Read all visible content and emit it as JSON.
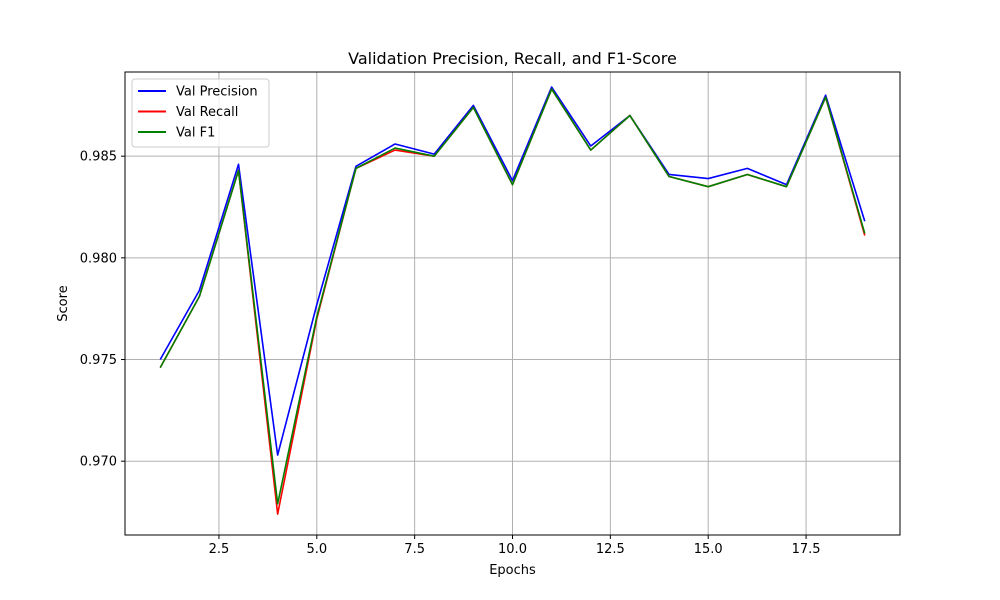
{
  "chart_data": {
    "type": "line",
    "title": "Validation Precision, Recall, and F1-Score",
    "xlabel": "Epochs",
    "ylabel": "Score",
    "xlim": [
      0.1,
      19.9
    ],
    "ylim": [
      0.96637,
      0.98914
    ],
    "xticks": [
      2.5,
      5.0,
      7.5,
      10.0,
      12.5,
      15.0,
      17.5
    ],
    "xtick_labels": [
      "2.5",
      "5.0",
      "7.5",
      "10.0",
      "12.5",
      "15.0",
      "17.5"
    ],
    "yticks": [
      0.97,
      0.975,
      0.98,
      0.985
    ],
    "ytick_labels": [
      "0.970",
      "0.975",
      "0.980",
      "0.985"
    ],
    "grid": true,
    "legend_position": "top-left",
    "x": [
      1,
      2,
      3,
      4,
      5,
      6,
      7,
      8,
      9,
      10,
      11,
      12,
      13,
      14,
      15,
      16,
      17,
      18,
      19
    ],
    "series": [
      {
        "name": "Val Precision",
        "color": "#0000ff",
        "values": [
          0.975,
          0.9784,
          0.9846,
          0.9703,
          0.9777,
          0.9845,
          0.9856,
          0.9851,
          0.9875,
          0.9838,
          0.9884,
          0.9855,
          0.987,
          0.9841,
          0.9839,
          0.9844,
          0.9836,
          0.988,
          0.9818
        ]
      },
      {
        "name": "Val Recall",
        "color": "#ff0000",
        "values": [
          0.9746,
          0.9781,
          0.9843,
          0.9674,
          0.977,
          0.9844,
          0.9853,
          0.985,
          0.9874,
          0.9836,
          0.9883,
          0.9853,
          0.987,
          0.984,
          0.9835,
          0.9841,
          0.9835,
          0.9879,
          0.9811
        ]
      },
      {
        "name": "Val F1",
        "color": "#008000",
        "values": [
          0.9746,
          0.9781,
          0.9843,
          0.9679,
          0.9771,
          0.9844,
          0.9854,
          0.985,
          0.9874,
          0.9836,
          0.9883,
          0.9853,
          0.987,
          0.984,
          0.9835,
          0.9841,
          0.9835,
          0.9879,
          0.9812
        ]
      }
    ]
  }
}
